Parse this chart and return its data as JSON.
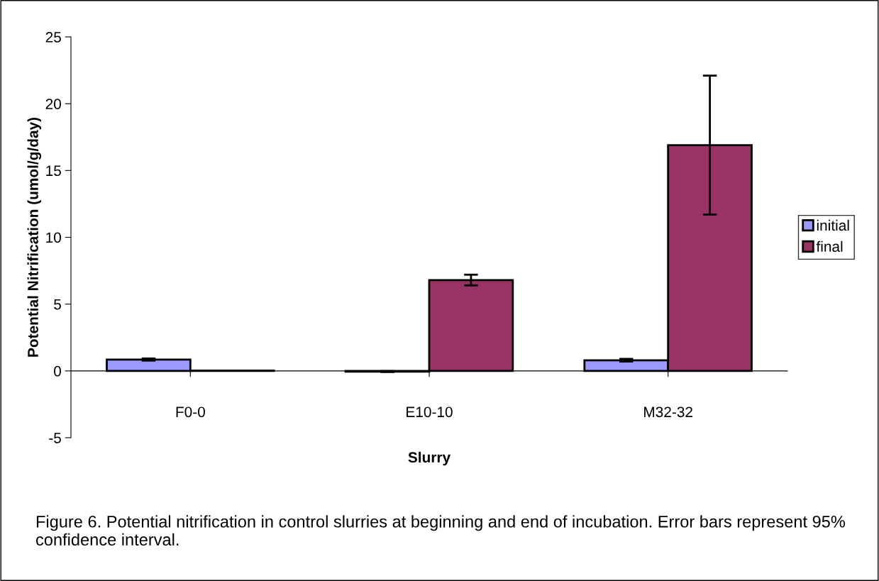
{
  "chart_data": {
    "type": "bar",
    "xlabel": "Slurry",
    "ylabel": "Potential Nitrification (umol/g/day)",
    "categories": [
      "F0-0",
      "E10-10",
      "M32-32"
    ],
    "series": [
      {
        "name": "initial",
        "color": "#9999ff",
        "values": [
          0.85,
          -0.05,
          0.8
        ],
        "errors": [
          0.08,
          0.03,
          0.1
        ]
      },
      {
        "name": "final",
        "color": "#993366",
        "values": [
          0.03,
          6.8,
          16.9
        ],
        "errors": [
          null,
          0.4,
          5.2
        ]
      }
    ],
    "ylim": [
      -5,
      25
    ],
    "yticks": [
      -5,
      0,
      5,
      10,
      15,
      20,
      25
    ],
    "legend": "right",
    "annotations": [
      "Figure 6. Potential nitrification in control slurries at beginning and end of incubation. Error bars represent 95% confidence interval."
    ]
  }
}
